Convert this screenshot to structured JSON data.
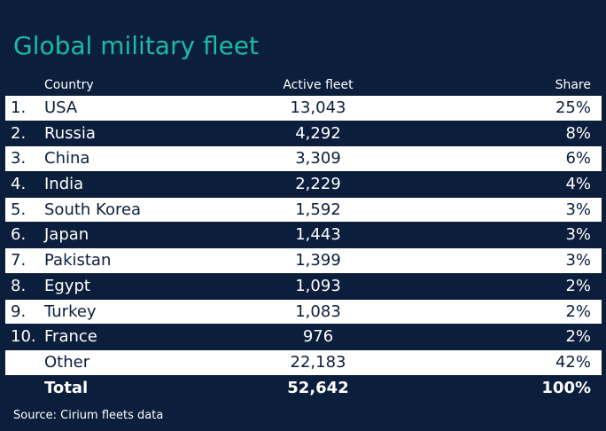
{
  "title": "Global military fleet",
  "headers": {
    "country": "Country",
    "fleet": "Active fleet",
    "share": "Share"
  },
  "rows": [
    {
      "rank": "1.",
      "country": "USA",
      "fleet": "13,043",
      "share": "25%"
    },
    {
      "rank": "2.",
      "country": "Russia",
      "fleet": "4,292",
      "share": "8%"
    },
    {
      "rank": "3.",
      "country": "China",
      "fleet": "3,309",
      "share": "6%"
    },
    {
      "rank": "4.",
      "country": "India",
      "fleet": "2,229",
      "share": "4%"
    },
    {
      "rank": "5.",
      "country": "South Korea",
      "fleet": "1,592",
      "share": "3%"
    },
    {
      "rank": "6.",
      "country": "Japan",
      "fleet": "1,443",
      "share": "3%"
    },
    {
      "rank": "7.",
      "country": "Pakistan",
      "fleet": "1,399",
      "share": "3%"
    },
    {
      "rank": "8.",
      "country": "Egypt",
      "fleet": "1,093",
      "share": "2%"
    },
    {
      "rank": "9.",
      "country": "Turkey",
      "fleet": "1,083",
      "share": "2%"
    },
    {
      "rank": "10.",
      "country": "France",
      "fleet": "976",
      "share": "2%"
    },
    {
      "rank": "",
      "country": "Other",
      "fleet": "22,183",
      "share": "42%"
    },
    {
      "rank": "",
      "country": "Total",
      "fleet": "52,642",
      "share": "100%"
    }
  ],
  "source": "Source: Cirium fleets data",
  "colors": {
    "background": "#0b1e3c",
    "accent": "#1cbba3",
    "row_light": "#ffffff"
  }
}
